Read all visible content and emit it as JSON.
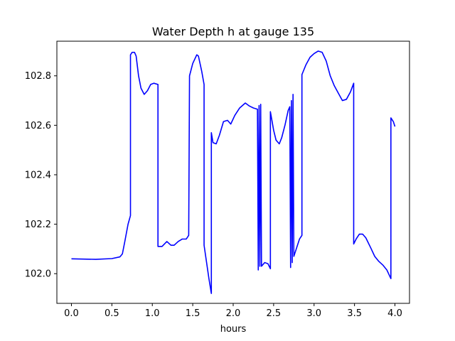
{
  "chart_data": {
    "type": "line",
    "title": "Water Depth h at gauge 135",
    "xlabel": "hours",
    "ylabel": "",
    "xlim": [
      -0.18,
      4.18
    ],
    "ylim": [
      101.88,
      102.94
    ],
    "xticks": [
      0.0,
      0.5,
      1.0,
      1.5,
      2.0,
      2.5,
      3.0,
      3.5,
      4.0
    ],
    "xtick_labels": [
      "0.0",
      "0.5",
      "1.0",
      "1.5",
      "2.0",
      "2.5",
      "3.0",
      "3.5",
      "4.0"
    ],
    "yticks": [
      102.0,
      102.2,
      102.4,
      102.6,
      102.8
    ],
    "ytick_labels": [
      "102.0",
      "102.2",
      "102.4",
      "102.6",
      "102.8"
    ],
    "grid": false,
    "legend": "none",
    "series": [
      {
        "color": "#0000ff",
        "points": [
          [
            0.0,
            102.06
          ],
          [
            0.3,
            102.058
          ],
          [
            0.5,
            102.061
          ],
          [
            0.6,
            102.068
          ],
          [
            0.63,
            102.08
          ],
          [
            0.66,
            102.13
          ],
          [
            0.7,
            102.2
          ],
          [
            0.73,
            102.235
          ],
          [
            0.73,
            102.885
          ],
          [
            0.75,
            102.895
          ],
          [
            0.78,
            102.895
          ],
          [
            0.8,
            102.88
          ],
          [
            0.83,
            102.8
          ],
          [
            0.86,
            102.75
          ],
          [
            0.9,
            102.725
          ],
          [
            0.94,
            102.74
          ],
          [
            0.98,
            102.765
          ],
          [
            1.02,
            102.77
          ],
          [
            1.07,
            102.765
          ],
          [
            1.07,
            102.11
          ],
          [
            1.12,
            102.11
          ],
          [
            1.18,
            102.13
          ],
          [
            1.23,
            102.115
          ],
          [
            1.27,
            102.115
          ],
          [
            1.32,
            102.13
          ],
          [
            1.37,
            102.14
          ],
          [
            1.42,
            102.14
          ],
          [
            1.45,
            102.155
          ],
          [
            1.46,
            102.8
          ],
          [
            1.5,
            102.85
          ],
          [
            1.55,
            102.885
          ],
          [
            1.57,
            102.88
          ],
          [
            1.61,
            102.82
          ],
          [
            1.64,
            102.765
          ],
          [
            1.64,
            102.115
          ],
          [
            1.7,
            101.98
          ],
          [
            1.73,
            101.92
          ],
          [
            1.73,
            102.57
          ],
          [
            1.75,
            102.53
          ],
          [
            1.79,
            102.525
          ],
          [
            1.83,
            102.56
          ],
          [
            1.88,
            102.615
          ],
          [
            1.93,
            102.62
          ],
          [
            1.97,
            102.605
          ],
          [
            2.02,
            102.64
          ],
          [
            2.08,
            102.67
          ],
          [
            2.15,
            102.69
          ],
          [
            2.2,
            102.678
          ],
          [
            2.25,
            102.67
          ],
          [
            2.3,
            102.665
          ],
          [
            2.31,
            102.015
          ],
          [
            2.32,
            102.68
          ],
          [
            2.33,
            102.03
          ],
          [
            2.34,
            102.685
          ],
          [
            2.35,
            102.03
          ],
          [
            2.39,
            102.045
          ],
          [
            2.43,
            102.04
          ],
          [
            2.46,
            102.02
          ],
          [
            2.46,
            102.655
          ],
          [
            2.5,
            102.58
          ],
          [
            2.53,
            102.54
          ],
          [
            2.57,
            102.525
          ],
          [
            2.6,
            102.55
          ],
          [
            2.64,
            102.6
          ],
          [
            2.68,
            102.66
          ],
          [
            2.7,
            102.675
          ],
          [
            2.71,
            102.025
          ],
          [
            2.72,
            102.7
          ],
          [
            2.73,
            102.045
          ],
          [
            2.74,
            102.725
          ],
          [
            2.75,
            102.07
          ],
          [
            2.78,
            102.1
          ],
          [
            2.82,
            102.14
          ],
          [
            2.85,
            102.155
          ],
          [
            2.85,
            102.805
          ],
          [
            2.9,
            102.845
          ],
          [
            2.95,
            102.875
          ],
          [
            3.0,
            102.89
          ],
          [
            3.05,
            102.9
          ],
          [
            3.1,
            102.895
          ],
          [
            3.15,
            102.86
          ],
          [
            3.2,
            102.8
          ],
          [
            3.25,
            102.76
          ],
          [
            3.3,
            102.73
          ],
          [
            3.35,
            102.7
          ],
          [
            3.4,
            102.705
          ],
          [
            3.45,
            102.735
          ],
          [
            3.49,
            102.77
          ],
          [
            3.49,
            102.12
          ],
          [
            3.52,
            102.14
          ],
          [
            3.56,
            102.16
          ],
          [
            3.6,
            102.16
          ],
          [
            3.64,
            102.145
          ],
          [
            3.7,
            102.105
          ],
          [
            3.75,
            102.07
          ],
          [
            3.8,
            102.05
          ],
          [
            3.85,
            102.035
          ],
          [
            3.9,
            102.015
          ],
          [
            3.95,
            101.98
          ],
          [
            3.95,
            102.63
          ],
          [
            3.98,
            102.615
          ],
          [
            4.0,
            102.595
          ]
        ]
      }
    ]
  }
}
